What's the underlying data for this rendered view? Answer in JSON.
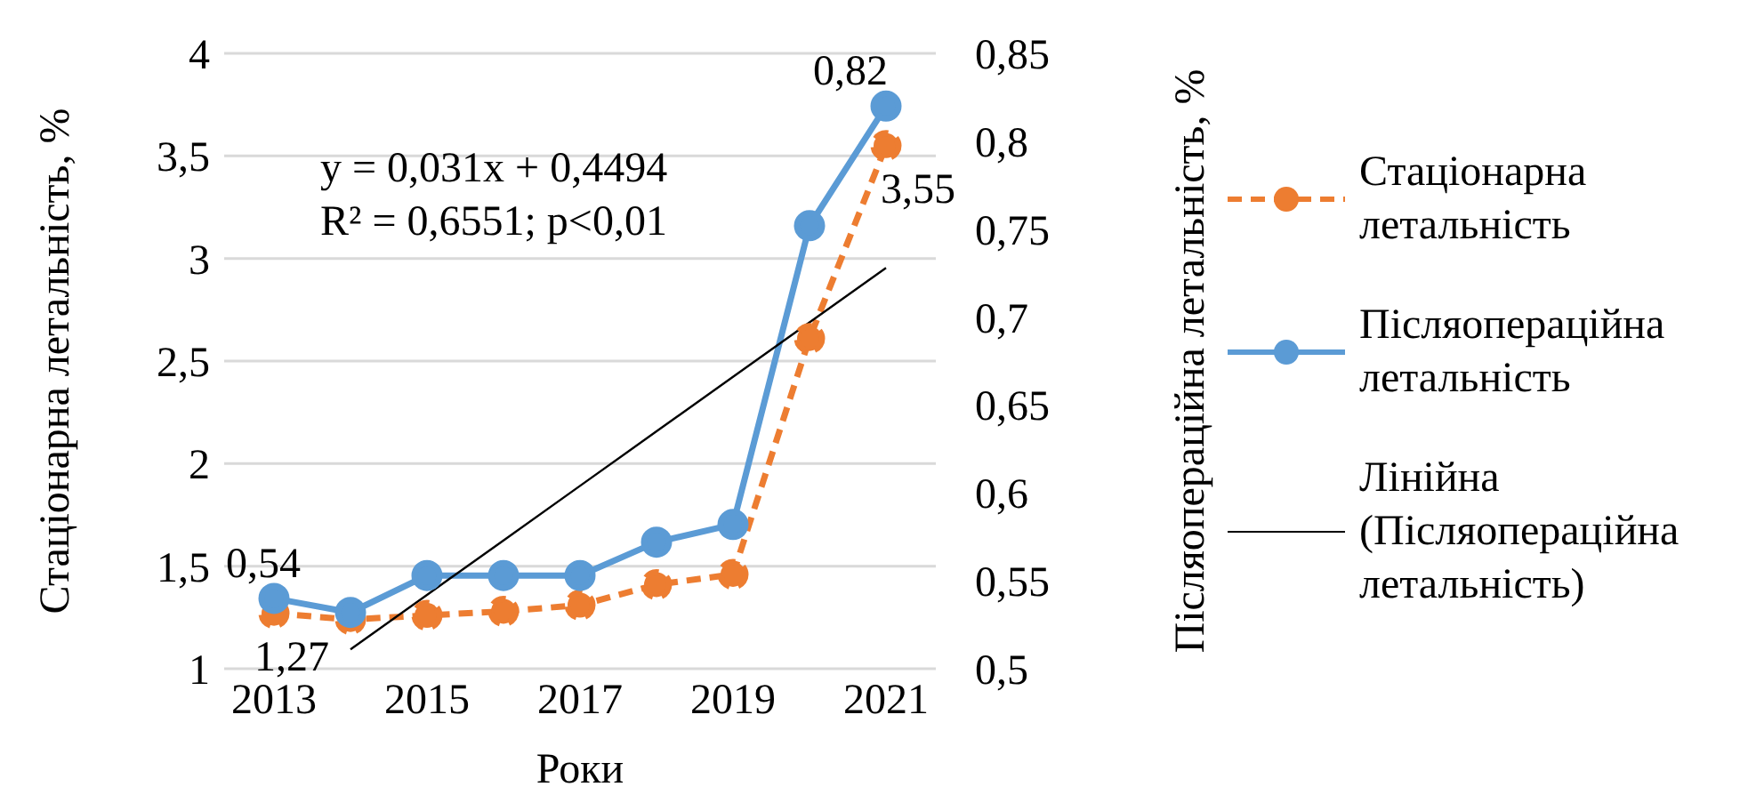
{
  "chart_data": {
    "type": "line",
    "xlabel": "Роки",
    "ylabel": "Стаціонарна летальність, %",
    "y2label": "Післяопераційна летальність, %",
    "categories": [
      "2013",
      null,
      "2015",
      null,
      "2017",
      null,
      "2019",
      null,
      "2021"
    ],
    "series": [
      {
        "name": "Стаціонарна летальність",
        "color": "#ed7d31",
        "line_style": "dashed",
        "marker": "circle",
        "values": [
          1.27,
          1.24,
          1.26,
          1.28,
          1.31,
          1.41,
          1.46,
          2.61,
          3.55
        ],
        "value_labels": [
          "1,27",
          null,
          null,
          null,
          null,
          null,
          null,
          null,
          "3,55"
        ]
      },
      {
        "name": "Післяопераційна летальність",
        "color": "#5b9bd5",
        "axis": "y2",
        "line_style": "solid",
        "marker": "circle",
        "values": [
          0.54,
          0.532,
          0.553,
          0.553,
          0.553,
          0.572,
          0.582,
          0.752,
          0.82
        ],
        "value_labels": [
          "0,54",
          null,
          null,
          null,
          null,
          null,
          null,
          null,
          "0,82"
        ]
      },
      {
        "name": "Лінійна (Післяопераційна летальність)",
        "color": "#000000",
        "axis": "y2",
        "line_style": "solid",
        "marker": "none",
        "values": [
          null,
          0.511,
          0.542,
          0.573,
          0.604,
          0.635,
          0.666,
          0.697,
          0.728
        ]
      }
    ],
    "ylim": [
      1,
      4
    ],
    "yticks": [
      1,
      {
        "value": 1.5,
        "label": "1,5"
      },
      2,
      {
        "value": 2.5,
        "label": "2,5"
      },
      3,
      {
        "value": 3.5,
        "label": "3,5"
      },
      4
    ],
    "y2lim": [
      0.5,
      0.85
    ],
    "y2ticks": [
      {
        "value": 0.5,
        "label": "0,5"
      },
      {
        "value": 0.55,
        "label": "0,55"
      },
      {
        "value": 0.6,
        "label": "0,6"
      },
      {
        "value": 0.65,
        "label": "0,65"
      },
      {
        "value": 0.7,
        "label": "0,7"
      },
      {
        "value": 0.75,
        "label": "0,75"
      },
      {
        "value": 0.8,
        "label": "0,8"
      },
      {
        "value": 0.85,
        "label": "0,85"
      }
    ],
    "annotations": [
      "y = 0,031x + 0,4494",
      "R² = 0,6551; p<0,01"
    ],
    "grid": "y",
    "legend": "right"
  }
}
